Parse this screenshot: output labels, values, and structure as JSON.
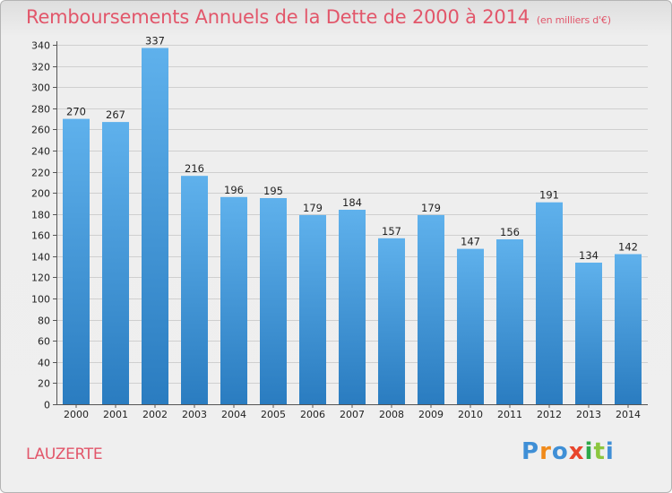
{
  "chart_data": {
    "type": "bar",
    "title": "Remboursements Annuels de la Dette de 2000 à 2014",
    "subtitle": "(en milliers d'€)",
    "categories": [
      "2000",
      "2001",
      "2002",
      "2003",
      "2004",
      "2005",
      "2006",
      "2007",
      "2008",
      "2009",
      "2010",
      "2011",
      "2012",
      "2013",
      "2014"
    ],
    "values": [
      270,
      267,
      337,
      216,
      196,
      195,
      179,
      184,
      157,
      179,
      147,
      156,
      191,
      134,
      142
    ],
    "ylim": [
      0,
      340
    ],
    "yticks": [
      0,
      20,
      40,
      60,
      80,
      100,
      120,
      140,
      160,
      180,
      200,
      220,
      240,
      260,
      280,
      300,
      320,
      340
    ],
    "xlabel": "",
    "ylabel": "",
    "grid": true,
    "bar_color": "#4a9fdf"
  },
  "footer": {
    "municipality": "LAUZERTE",
    "brand_letters": [
      "P",
      "r",
      "o",
      "x",
      "i",
      "t",
      "i"
    ],
    "brand_colors": [
      "#3f8fd6",
      "#f08a1a",
      "#3f8fd6",
      "#e8452c",
      "#2ea84a",
      "#8cc63f",
      "#3f8fd6"
    ]
  }
}
